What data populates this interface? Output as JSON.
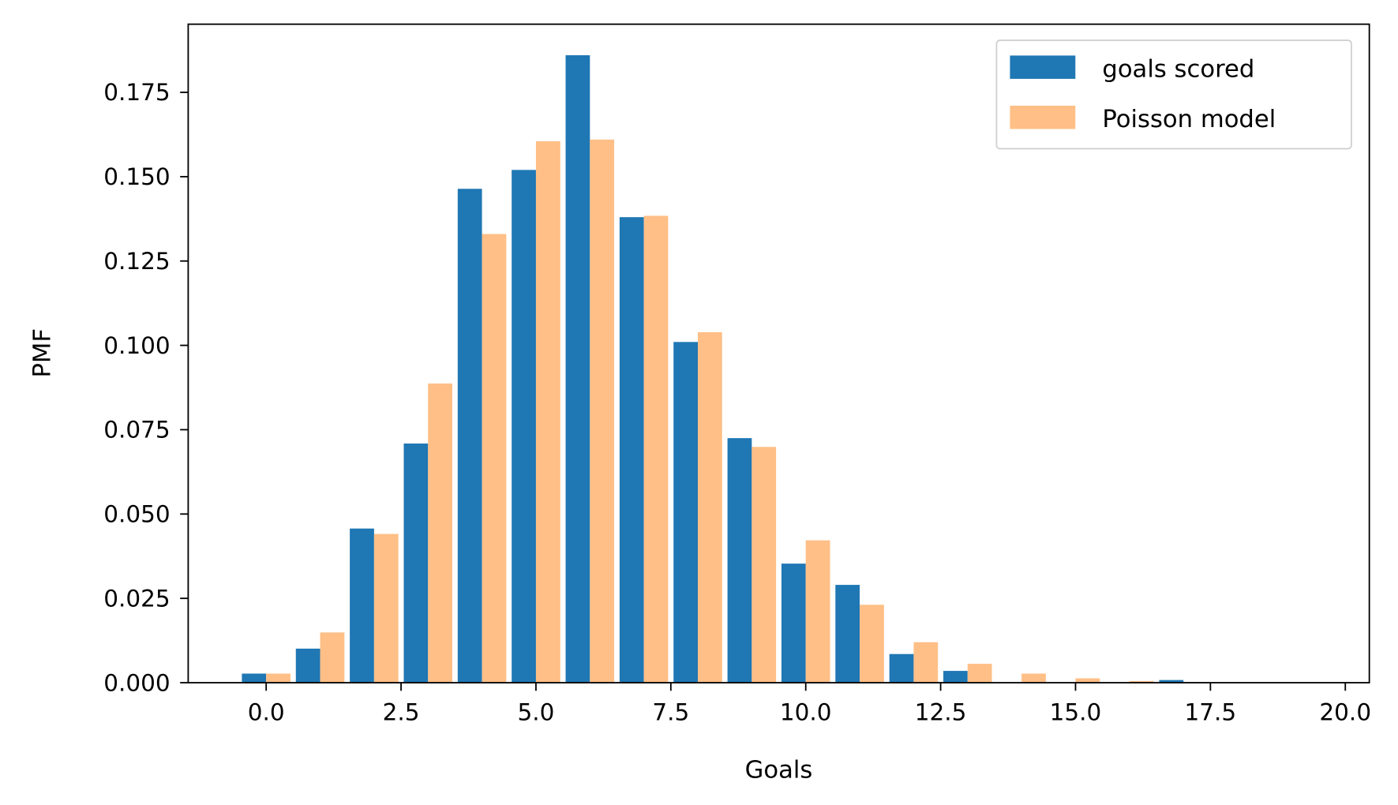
{
  "chart_data": {
    "type": "bar",
    "title": "",
    "xlabel": "Goals",
    "ylabel": "PMF",
    "xlim": [
      -1.445,
      20.445
    ],
    "ylim": [
      0,
      0.1952
    ],
    "xticks": [
      0.0,
      2.5,
      5.0,
      7.5,
      10.0,
      12.5,
      15.0,
      17.5,
      20.0
    ],
    "xtick_labels": [
      "0.0",
      "2.5",
      "5.0",
      "7.5",
      "10.0",
      "12.5",
      "15.0",
      "17.5",
      "20.0"
    ],
    "yticks": [
      0,
      0.025,
      0.05,
      0.075,
      0.1,
      0.125,
      0.15,
      0.175
    ],
    "ytick_labels": [
      "0.000",
      "0.025",
      "0.050",
      "0.075",
      "0.100",
      "0.125",
      "0.150",
      "0.175"
    ],
    "grid": false,
    "legend_position": "top-right",
    "bar_width": 0.45,
    "x": [
      0,
      1,
      2,
      3,
      4,
      5,
      6,
      7,
      8,
      9,
      10,
      11,
      12,
      13,
      14,
      15,
      16,
      17
    ],
    "series": [
      {
        "name": "goals scored",
        "color": "#1f77b4",
        "offset": -0.225,
        "values": [
          0.0027,
          0.0101,
          0.0457,
          0.0709,
          0.1464,
          0.152,
          0.186,
          0.138,
          0.101,
          0.0725,
          0.0353,
          0.029,
          0.0085,
          0.0035,
          0,
          0,
          0,
          0.0008
        ]
      },
      {
        "name": "Poisson model",
        "color": "#ffbf86",
        "offset": 0.225,
        "values": [
          0.0027,
          0.0149,
          0.0441,
          0.0887,
          0.133,
          0.1605,
          0.161,
          0.1384,
          0.1039,
          0.0699,
          0.0422,
          0.0231,
          0.012,
          0.0056,
          0.0027,
          0.0013,
          0.0005,
          0.0002
        ]
      }
    ]
  }
}
